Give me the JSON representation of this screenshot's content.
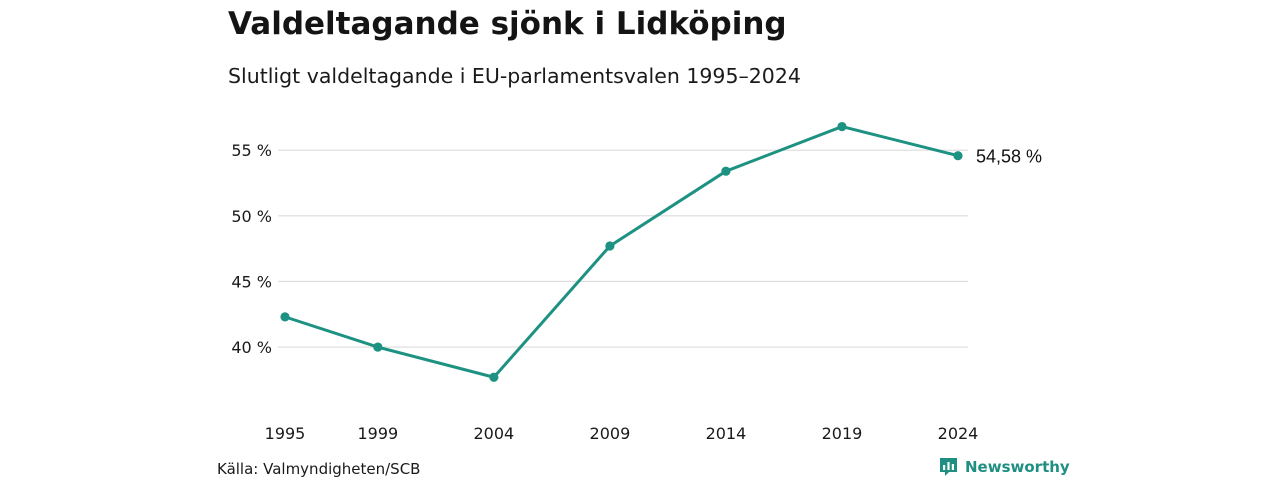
{
  "header": {
    "title": "Valdeltagande sjönk i Lidköping",
    "subtitle": "Slutligt valdeltagande i EU-parlamentsvalen 1995–2024"
  },
  "footer": {
    "source": "Källa: Valmyndigheten/SCB",
    "brand": "Newsworthy"
  },
  "colors": {
    "line": "#1d9283",
    "grid": "#dcdcdc",
    "brand": "#1f8f82"
  },
  "chart_data": {
    "type": "line",
    "title": "",
    "xlabel": "",
    "ylabel": "",
    "x": [
      1995,
      1999,
      2004,
      2009,
      2014,
      2019,
      2024
    ],
    "series": [
      {
        "values": [
          42.3,
          40.0,
          37.7,
          47.7,
          53.4,
          56.8,
          54.58
        ]
      }
    ],
    "ylim": [
      36.5,
      57.3
    ],
    "yticks": [
      40,
      45,
      50,
      55
    ],
    "ytick_labels": [
      "40 %",
      "45 %",
      "50 %",
      "55 %"
    ],
    "xtick_labels": [
      "1995",
      "1999",
      "2004",
      "2009",
      "2014",
      "2019",
      "2024"
    ],
    "end_label": "54,58 %",
    "grid": true,
    "legend": "none"
  }
}
